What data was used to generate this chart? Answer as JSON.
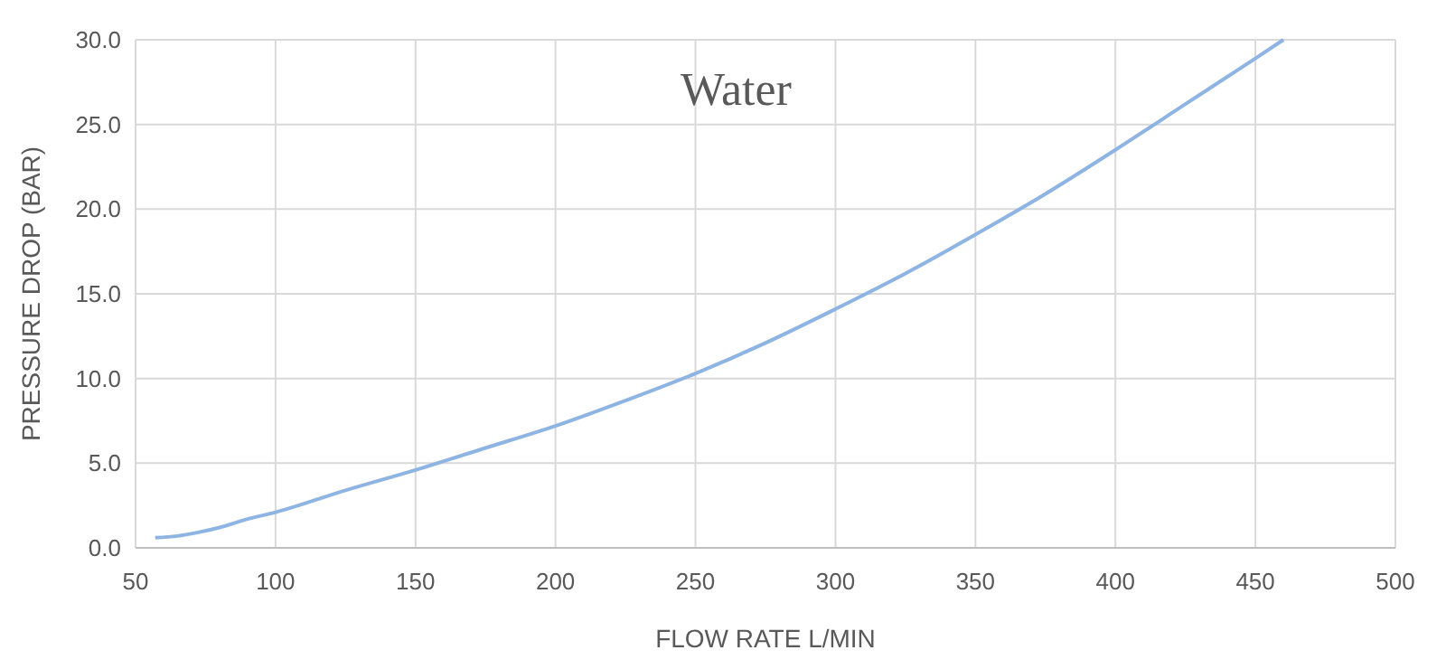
{
  "chart_data": {
    "type": "line",
    "title": "Water",
    "xlabel": "FLOW RATE L/MIN",
    "ylabel": "PRESSURE DROP (BAR)",
    "x": [
      57,
      65,
      72,
      80,
      90,
      100,
      125,
      150,
      175,
      200,
      225,
      250,
      275,
      300,
      325,
      350,
      375,
      400,
      425,
      450,
      460
    ],
    "series": [
      {
        "color": "#8eb4e3",
        "values": [
          0.6,
          0.7,
          0.9,
          1.2,
          1.7,
          2.1,
          3.4,
          4.6,
          5.9,
          7.2,
          8.7,
          10.3,
          12.1,
          14.1,
          16.2,
          18.5,
          20.9,
          23.5,
          26.2,
          28.9,
          30.0
        ]
      }
    ],
    "xlim": [
      50,
      500
    ],
    "xticks": [
      50,
      100,
      150,
      200,
      250,
      300,
      350,
      400,
      450,
      500
    ],
    "ylim": [
      0,
      30
    ],
    "yticks": [
      {
        "value": 0,
        "label": "0.0"
      },
      {
        "value": 5,
        "label": "5.0"
      },
      {
        "value": 10,
        "label": "10.0"
      },
      {
        "value": 15,
        "label": "15.0"
      },
      {
        "value": 20,
        "label": "20.0"
      },
      {
        "value": 25,
        "label": "25.0"
      },
      {
        "value": 30,
        "label": "30.0"
      }
    ],
    "grid": true,
    "marker": "none",
    "line_style": "solid"
  }
}
